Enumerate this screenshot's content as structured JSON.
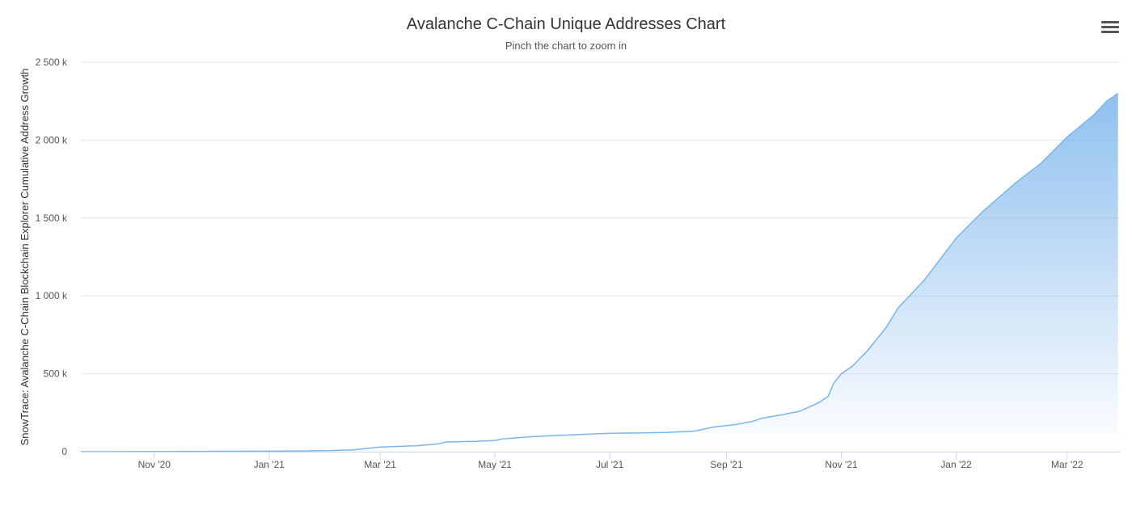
{
  "chart_data": {
    "type": "area",
    "title": "Avalanche C-Chain Unique Addresses Chart",
    "subtitle": "Pinch the chart to zoom in",
    "ylabel": "SnowTrace: Avalanche C-Chain Blockchain Explorer Cumulative Address Growth",
    "xlabel": "",
    "ylim": [
      0,
      2500000
    ],
    "yticks": [
      0,
      500000,
      1000000,
      1500000,
      2000000,
      2500000
    ],
    "ytick_labels": [
      "0",
      "500 k",
      "1 000 k",
      "1 500 k",
      "2 000 k",
      "2 500 k"
    ],
    "xticks": [
      "2020-11-01",
      "2021-01-01",
      "2021-03-01",
      "2021-05-01",
      "2021-07-01",
      "2021-09-01",
      "2021-11-01",
      "2022-01-01",
      "2022-03-01"
    ],
    "xtick_labels": [
      "Nov '20",
      "Jan '21",
      "Mar '21",
      "May '21",
      "Jul '21",
      "Sep '21",
      "Nov '21",
      "Jan '22",
      "Mar '22"
    ],
    "xlim": [
      "2020-09-23",
      "2022-03-29"
    ],
    "grid": true,
    "legend": false,
    "color": "#7cb5ec",
    "series": [
      {
        "points": [
          [
            "2020-09-23",
            0
          ],
          [
            "2020-11-01",
            1000
          ],
          [
            "2021-01-01",
            3000
          ],
          [
            "2021-02-01",
            6000
          ],
          [
            "2021-02-15",
            12000
          ],
          [
            "2021-03-01",
            30000
          ],
          [
            "2021-03-20",
            38000
          ],
          [
            "2021-04-01",
            50000
          ],
          [
            "2021-04-05",
            62000
          ],
          [
            "2021-04-20",
            66000
          ],
          [
            "2021-05-01",
            72000
          ],
          [
            "2021-05-05",
            82000
          ],
          [
            "2021-05-20",
            96000
          ],
          [
            "2021-06-01",
            103000
          ],
          [
            "2021-06-15",
            110000
          ],
          [
            "2021-07-01",
            118000
          ],
          [
            "2021-07-20",
            121000
          ],
          [
            "2021-08-01",
            124000
          ],
          [
            "2021-08-15",
            132000
          ],
          [
            "2021-08-25",
            158000
          ],
          [
            "2021-09-05",
            172000
          ],
          [
            "2021-09-15",
            195000
          ],
          [
            "2021-09-20",
            215000
          ],
          [
            "2021-10-01",
            238000
          ],
          [
            "2021-10-10",
            260000
          ],
          [
            "2021-10-20",
            315000
          ],
          [
            "2021-10-25",
            355000
          ],
          [
            "2021-10-28",
            440000
          ],
          [
            "2021-11-01",
            500000
          ],
          [
            "2021-11-07",
            550000
          ],
          [
            "2021-11-15",
            650000
          ],
          [
            "2021-11-25",
            800000
          ],
          [
            "2021-12-01",
            920000
          ],
          [
            "2021-12-15",
            1100000
          ],
          [
            "2022-01-01",
            1370000
          ],
          [
            "2022-01-15",
            1540000
          ],
          [
            "2022-02-01",
            1720000
          ],
          [
            "2022-02-15",
            1850000
          ],
          [
            "2022-03-01",
            2020000
          ],
          [
            "2022-03-15",
            2160000
          ],
          [
            "2022-03-22",
            2250000
          ],
          [
            "2022-03-28",
            2300000
          ]
        ]
      }
    ]
  }
}
